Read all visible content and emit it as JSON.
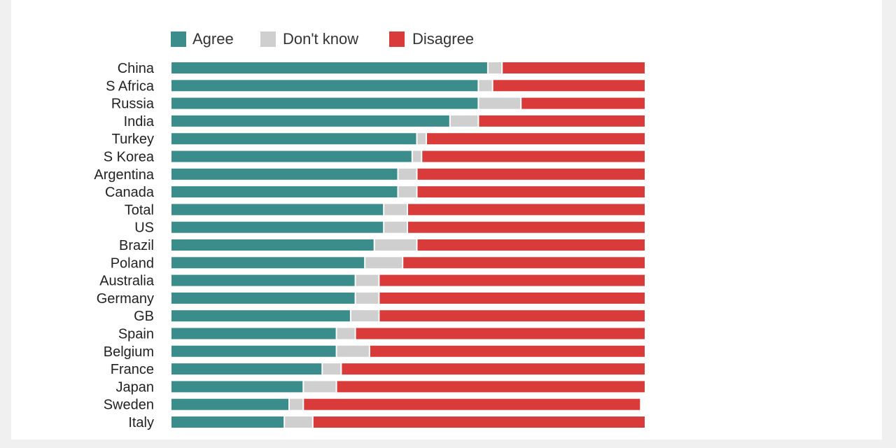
{
  "colors": {
    "agree": "#3a8d8a",
    "dont_know": "#cfcfcf",
    "disagree": "#d93a3a"
  },
  "legend": {
    "agree": "Agree",
    "dont_know": "Don't know",
    "disagree": "Disagree"
  },
  "chart_data": {
    "type": "bar",
    "orientation": "horizontal",
    "stacked": true,
    "legend_position": "top",
    "xlim": [
      0,
      100
    ],
    "categories": [
      "China",
      "S Africa",
      "Russia",
      "India",
      "Turkey",
      "S Korea",
      "Argentina",
      "Canada",
      "Total",
      "US",
      "Brazil",
      "Poland",
      "Australia",
      "Germany",
      "GB",
      "Spain",
      "Belgium",
      "France",
      "Japan",
      "Sweden",
      "Italy"
    ],
    "series": [
      {
        "name": "Agree",
        "values": [
          67,
          65,
          65,
          59,
          52,
          51,
          48,
          48,
          45,
          45,
          43,
          41,
          39,
          39,
          38,
          35,
          35,
          32,
          28,
          25,
          24
        ]
      },
      {
        "name": "Don't know",
        "values": [
          3,
          3,
          9,
          6,
          2,
          2,
          4,
          4,
          5,
          5,
          9,
          8,
          5,
          5,
          6,
          4,
          7,
          4,
          7,
          3,
          6
        ]
      },
      {
        "name": "Disagree",
        "values": [
          30,
          32,
          26,
          35,
          46,
          47,
          48,
          48,
          50,
          50,
          48,
          51,
          56,
          56,
          56,
          61,
          58,
          64,
          65,
          71,
          70
        ]
      }
    ]
  }
}
